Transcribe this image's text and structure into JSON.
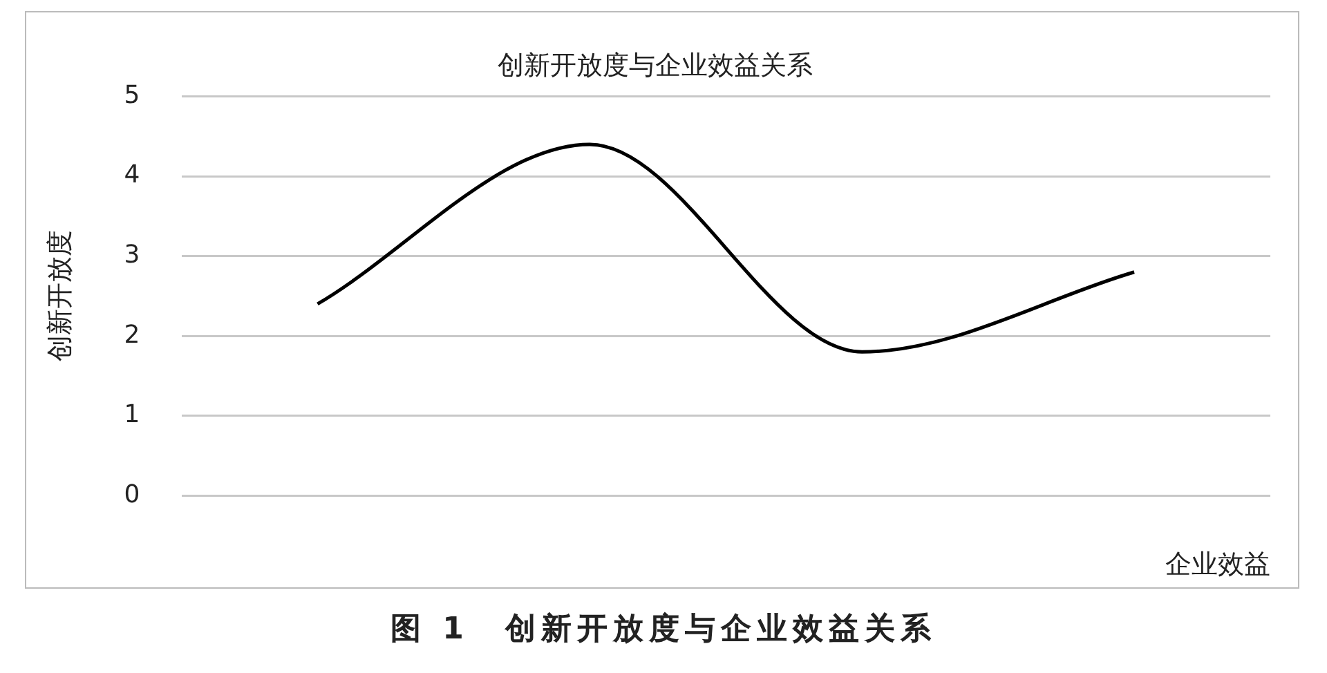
{
  "chart_data": {
    "type": "line",
    "title": "创新开放度与企业效益关系",
    "xlabel": "企业效益",
    "ylabel": "创新开放度",
    "categories": [
      null,
      null,
      null,
      null
    ],
    "series": [
      {
        "color": "#000000",
        "values": [
          2.4,
          4.4,
          1.8,
          2.8
        ]
      }
    ],
    "ylim": [
      0,
      5
    ],
    "yticks": [
      0,
      1,
      2,
      3,
      4,
      5
    ],
    "grid": "y",
    "legend": false,
    "marker": "none",
    "line_style": "solid",
    "annotations": [
      "图 1　创新开放度与企业效益关系"
    ]
  }
}
